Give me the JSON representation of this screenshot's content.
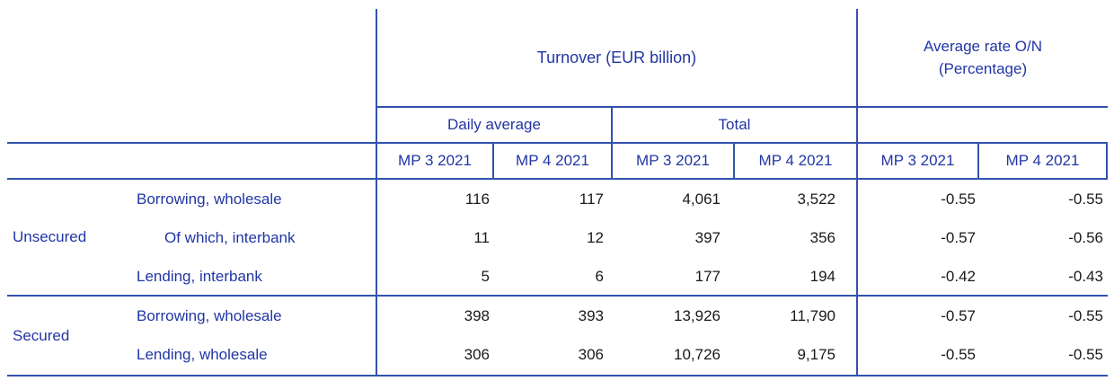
{
  "table": {
    "header": {
      "turnover": "Turnover (EUR billion)",
      "avg_rate": "Average rate O/N\n(Percentage)",
      "daily_average": "Daily average",
      "total": "Total"
    },
    "period_headers": [
      "MP 3 2021",
      "MP 4 2021",
      "MP 3 2021",
      "MP 4 2021",
      "MP 3 2021",
      "MP 4 2021"
    ],
    "groups": [
      {
        "label": "Unsecured"
      },
      {
        "label": "Secured"
      }
    ],
    "rows": [
      {
        "group": "Unsecured",
        "label": "Borrowing, wholesale",
        "indented": false,
        "values": [
          "116",
          "117",
          "4,061",
          "3,522",
          "-0.55",
          "-0.55"
        ]
      },
      {
        "group": "Unsecured",
        "label": "Of which, interbank",
        "indented": true,
        "values": [
          "11",
          "12",
          "397",
          "356",
          "-0.57",
          "-0.56"
        ]
      },
      {
        "group": "Unsecured",
        "label": "Lending, interbank",
        "indented": false,
        "values": [
          "5",
          "6",
          "177",
          "194",
          "-0.42",
          "-0.43"
        ]
      },
      {
        "group": "Secured",
        "label": "Borrowing, wholesale",
        "indented": false,
        "values": [
          "398",
          "393",
          "13,926",
          "11,790",
          "-0.57",
          "-0.55"
        ]
      },
      {
        "group": "Secured",
        "label": "Lending, wholesale",
        "indented": false,
        "values": [
          "306",
          "306",
          "10,726",
          "9,175",
          "-0.55",
          "-0.55"
        ]
      }
    ],
    "colors": {
      "text_blue": "#2136a4",
      "border_blue": "#3153ac",
      "value_text": "#1a1a1a"
    }
  }
}
